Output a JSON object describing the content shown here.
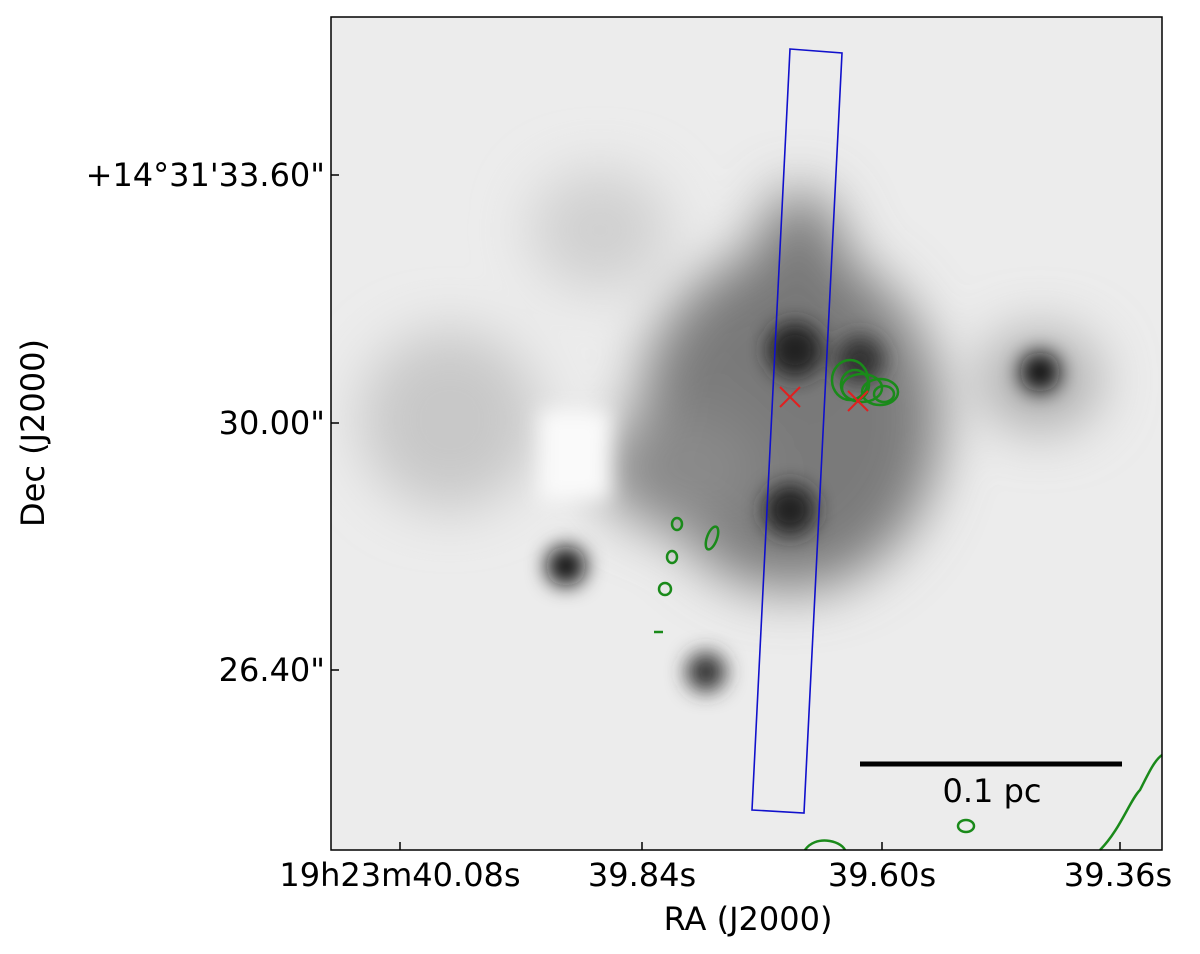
{
  "figure": {
    "x_axis": {
      "label": "RA (J2000)",
      "ticks": [
        "19h23m40.08s",
        "39.84s",
        "39.60s",
        "39.36s"
      ]
    },
    "y_axis": {
      "label": "Dec (J2000)",
      "ticks": [
        "+14°31'33.60\"",
        "30.00\"",
        "26.40\""
      ]
    },
    "scale_bar": {
      "label": "0.1 pc"
    }
  }
}
